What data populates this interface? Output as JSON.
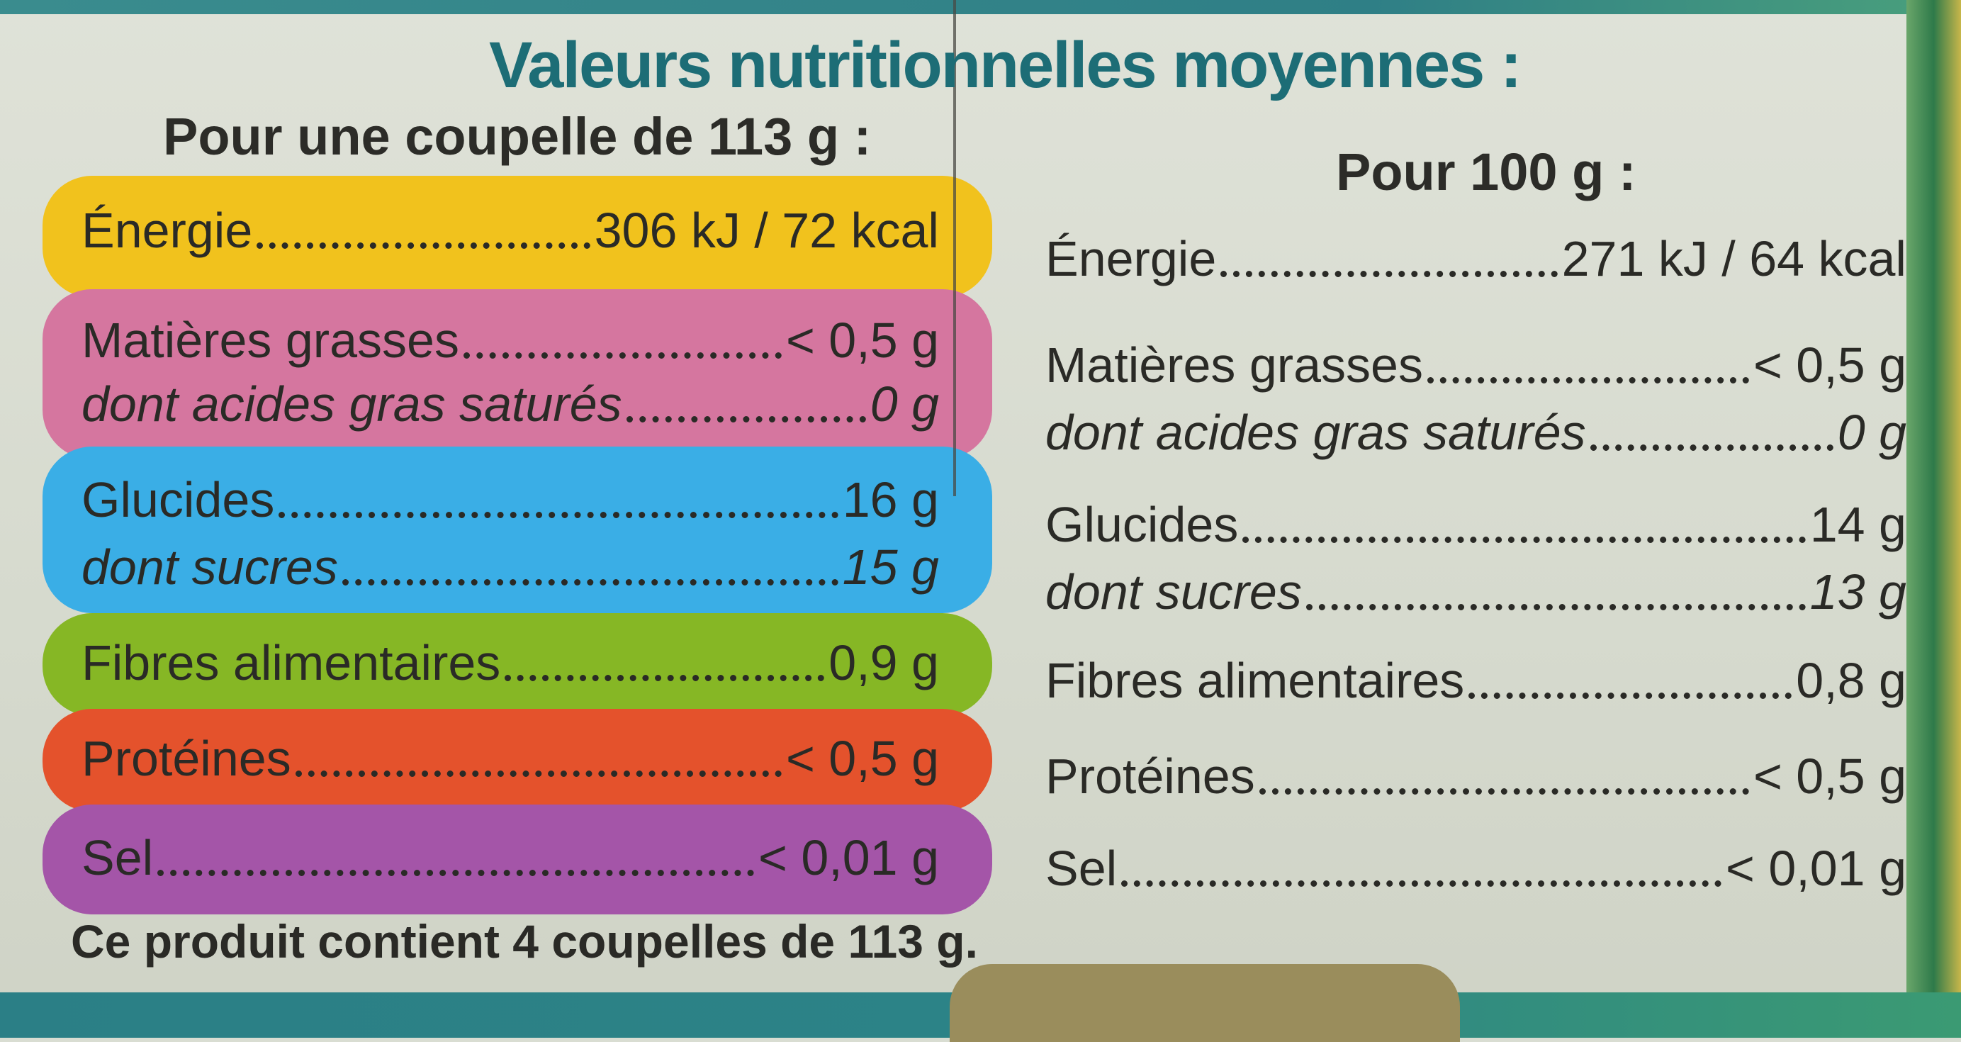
{
  "heading": "Valeurs nutritionnelles moyennes :",
  "portion_heading": "Pour une coupelle de 113 g :",
  "per100_heading": "Pour 100 g :",
  "colors": {
    "energy": "#f1c21d",
    "fat": "#d5769f",
    "carbs": "#3aaee6",
    "fibre": "#86b725",
    "protein": "#e4522c",
    "salt": "#a455a8",
    "title": "#1d6d76"
  },
  "portion": {
    "energie": {
      "label": "Énergie",
      "value": "306 kJ / 72 kcal"
    },
    "matieres_grasses": {
      "label": "Matières grasses",
      "value": "< 0,5 g"
    },
    "acides_gras_satures": {
      "label": "dont acides gras saturés",
      "value": "0 g"
    },
    "glucides": {
      "label": "Glucides",
      "value": "16 g"
    },
    "sucres": {
      "label": "dont sucres",
      "value": "15 g"
    },
    "fibres": {
      "label": "Fibres alimentaires",
      "value": "0,9 g"
    },
    "proteines": {
      "label": "Protéines",
      "value": "< 0,5 g"
    },
    "sel": {
      "label": "Sel",
      "value": "< 0,01 g"
    }
  },
  "per100": {
    "energie": {
      "label": "Énergie",
      "value": "271 kJ / 64 kcal"
    },
    "matieres_grasses": {
      "label": "Matières grasses",
      "value": "< 0,5 g"
    },
    "acides_gras_satures": {
      "label": "dont acides gras saturés",
      "value": "0 g"
    },
    "glucides": {
      "label": "Glucides",
      "value": "14 g"
    },
    "sucres": {
      "label": "dont sucres",
      "value": "13 g"
    },
    "fibres": {
      "label": "Fibres alimentaires",
      "value": "0,8 g"
    },
    "proteines": {
      "label": "Protéines",
      "value": "< 0,5 g"
    },
    "sel": {
      "label": "Sel",
      "value": "< 0,01 g"
    }
  },
  "footer": "Ce produit contient 4 coupelles de 113 g."
}
